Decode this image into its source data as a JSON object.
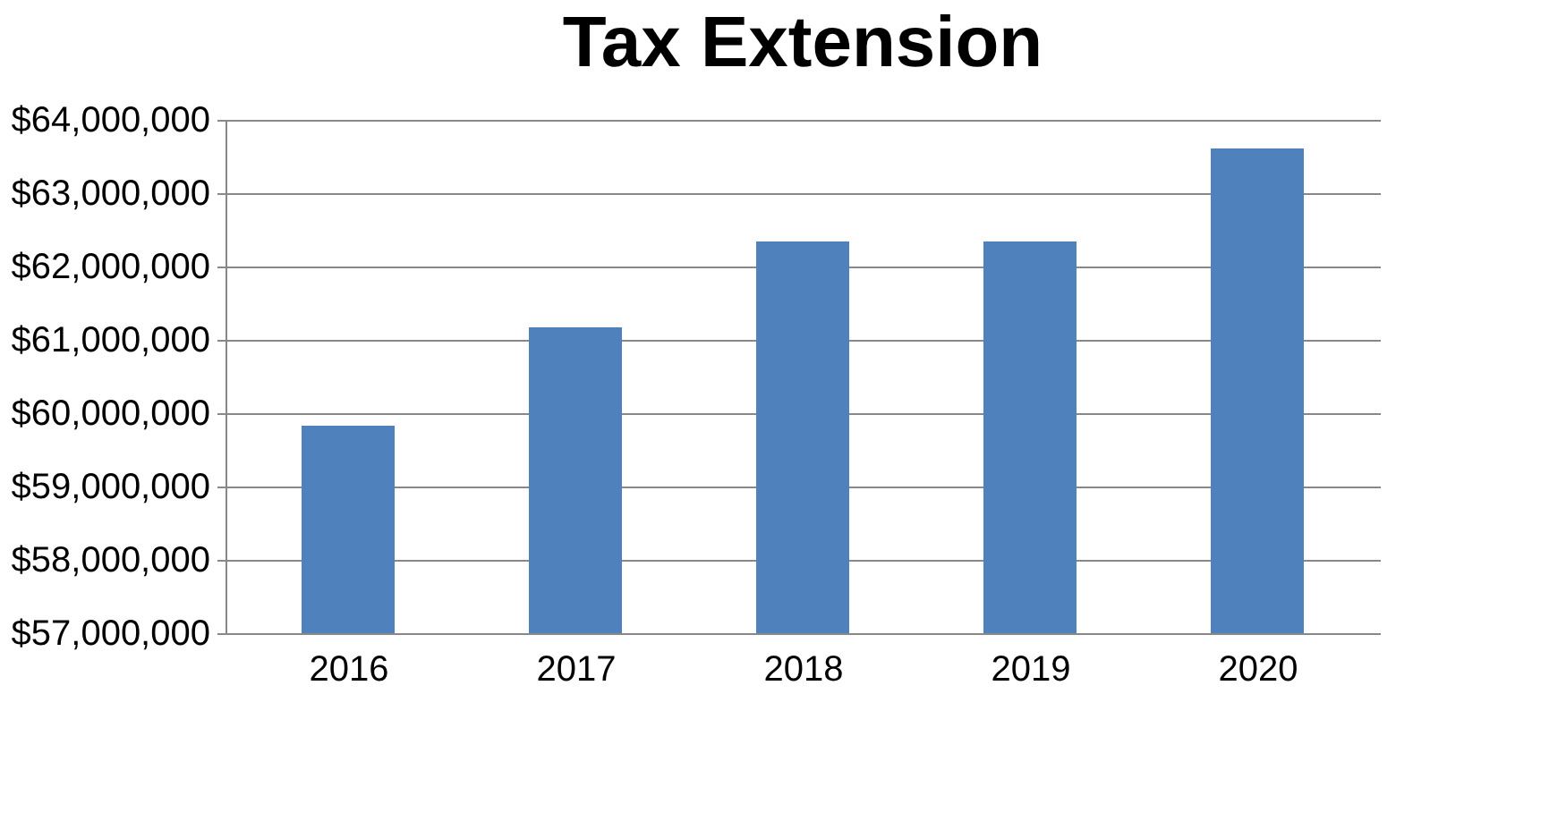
{
  "chart_data": {
    "type": "bar",
    "title": "Tax Extension",
    "categories": [
      "2016",
      "2017",
      "2018",
      "2019",
      "2020"
    ],
    "values": [
      59830000,
      61170000,
      62340000,
      62340000,
      63610000
    ],
    "color": "#4f81bd",
    "ylim": [
      57000000,
      64000000
    ],
    "yticks": [
      {
        "value": 57000000,
        "label": "$57,000,000"
      },
      {
        "value": 58000000,
        "label": "$58,000,000"
      },
      {
        "value": 59000000,
        "label": "$59,000,000"
      },
      {
        "value": 60000000,
        "label": "$60,000,000"
      },
      {
        "value": 61000000,
        "label": "$61,000,000"
      },
      {
        "value": 62000000,
        "label": "$62,000,000"
      },
      {
        "value": 63000000,
        "label": "$63,000,000"
      },
      {
        "value": 64000000,
        "label": "$64,000,000"
      }
    ],
    "grid": "y"
  }
}
